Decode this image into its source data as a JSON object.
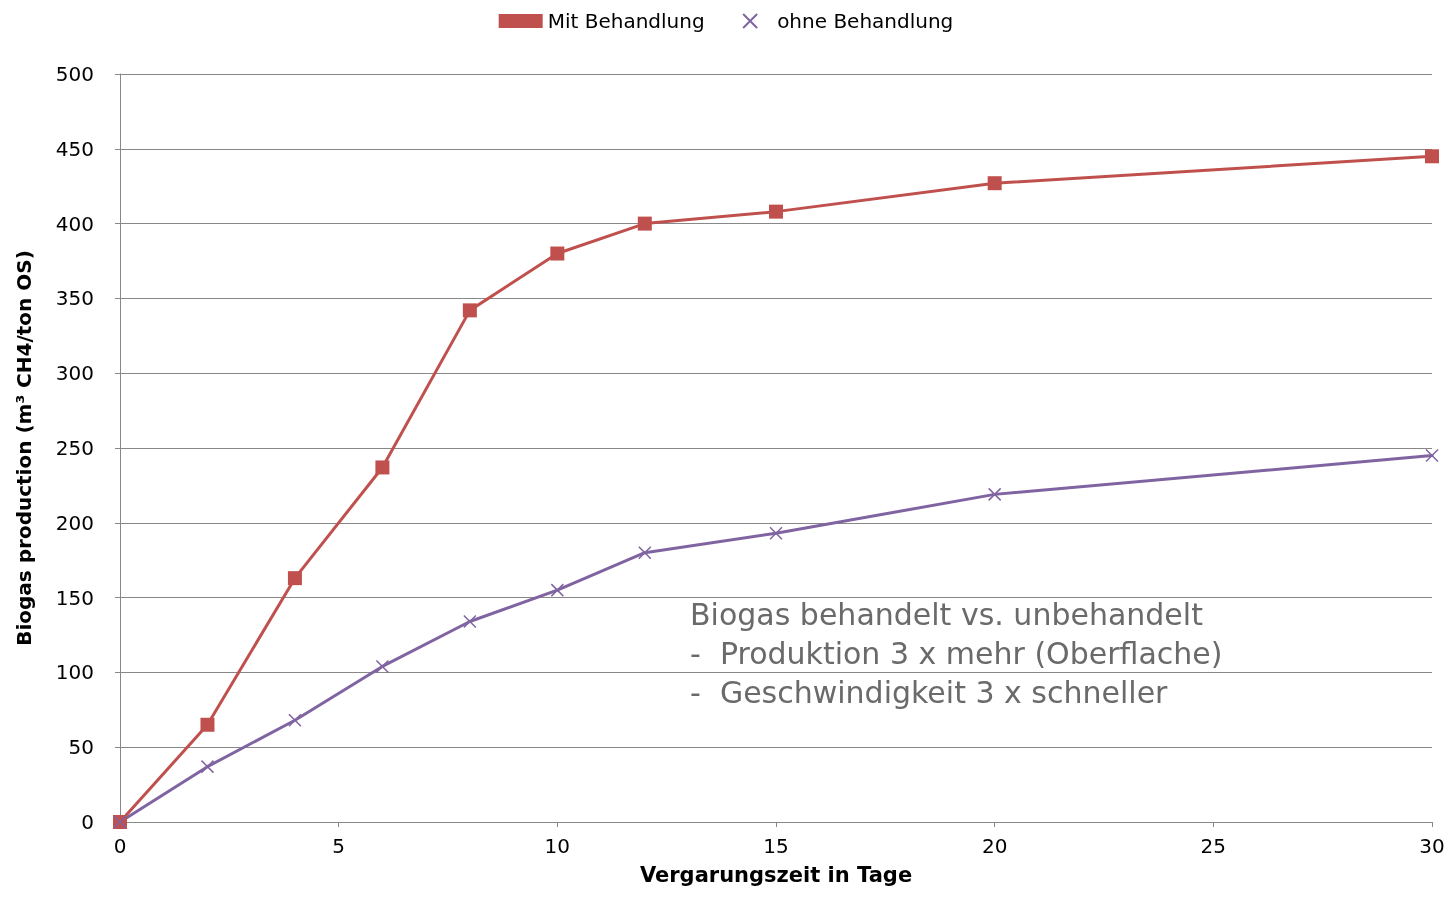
{
  "chart_data": {
    "type": "line",
    "xlabel": "Vergarungszeit in Tage",
    "ylabel": "Biogas production (m³ CH4/ton OS)",
    "xlim": [
      0,
      30
    ],
    "xticks": [
      0,
      5,
      10,
      15,
      20,
      25,
      30
    ],
    "ylim": [
      0,
      500
    ],
    "yticks": [
      0,
      50,
      100,
      150,
      200,
      250,
      300,
      350,
      400,
      450,
      500
    ],
    "grid": "y",
    "legend": "top",
    "line_style": "solid",
    "annotations": [
      "Biogas behandelt vs. unbehandelt\n-  Produktion 3 x mehr (Oberflache)\n-  Geschwindigkeit 3 x schneller"
    ],
    "series": [
      {
        "name": "Mit Behandlung",
        "color": "#c0504d",
        "marker": "square",
        "x": [
          0,
          2,
          4,
          6,
          8,
          10,
          12,
          15,
          20,
          30
        ],
        "values": [
          0,
          65,
          163,
          237,
          342,
          380,
          400,
          408,
          427,
          445
        ]
      },
      {
        "name": "ohne Behandlung",
        "color": "#8064a2",
        "marker": "cross",
        "x": [
          0,
          2,
          4,
          6,
          8,
          10,
          12,
          15,
          20,
          30
        ],
        "values": [
          0,
          37,
          68,
          104,
          134,
          155,
          180,
          193,
          219,
          245
        ]
      }
    ]
  }
}
